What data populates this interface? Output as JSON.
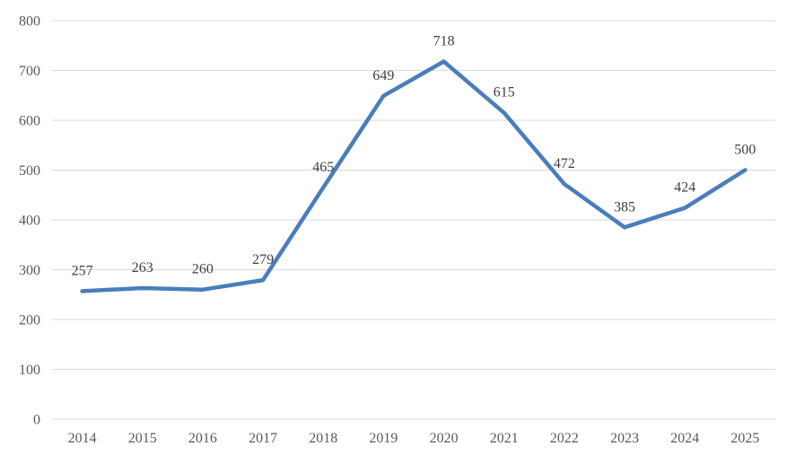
{
  "chart_data": {
    "type": "line",
    "title": "",
    "xlabel": "",
    "ylabel": "",
    "categories": [
      "2014",
      "2015",
      "2016",
      "2017",
      "2018",
      "2019",
      "2020",
      "2021",
      "2022",
      "2023",
      "2024",
      "2025"
    ],
    "series": [
      {
        "name": "",
        "values": [
          257,
          263,
          260,
          279,
          465,
          649,
          718,
          615,
          472,
          385,
          424,
          500
        ],
        "color": "#4A7EBB"
      }
    ],
    "data_labels": [
      "257",
      "263",
      "260",
      "279",
      "465",
      "649",
      "718",
      "615",
      "472",
      "385",
      "424",
      "500"
    ],
    "ylim": [
      0,
      800
    ],
    "y_tick_interval": 100,
    "y_tick_labels": [
      "0",
      "100",
      "200",
      "300",
      "400",
      "500",
      "600",
      "700",
      "800"
    ],
    "grid": "horizontal",
    "legend": "none",
    "colors": {
      "line": "#4A7EBB",
      "gridline": "#D9D9D9",
      "axis_text": "#595959",
      "data_label_text": "#404040",
      "background": "#FFFFFF"
    }
  }
}
